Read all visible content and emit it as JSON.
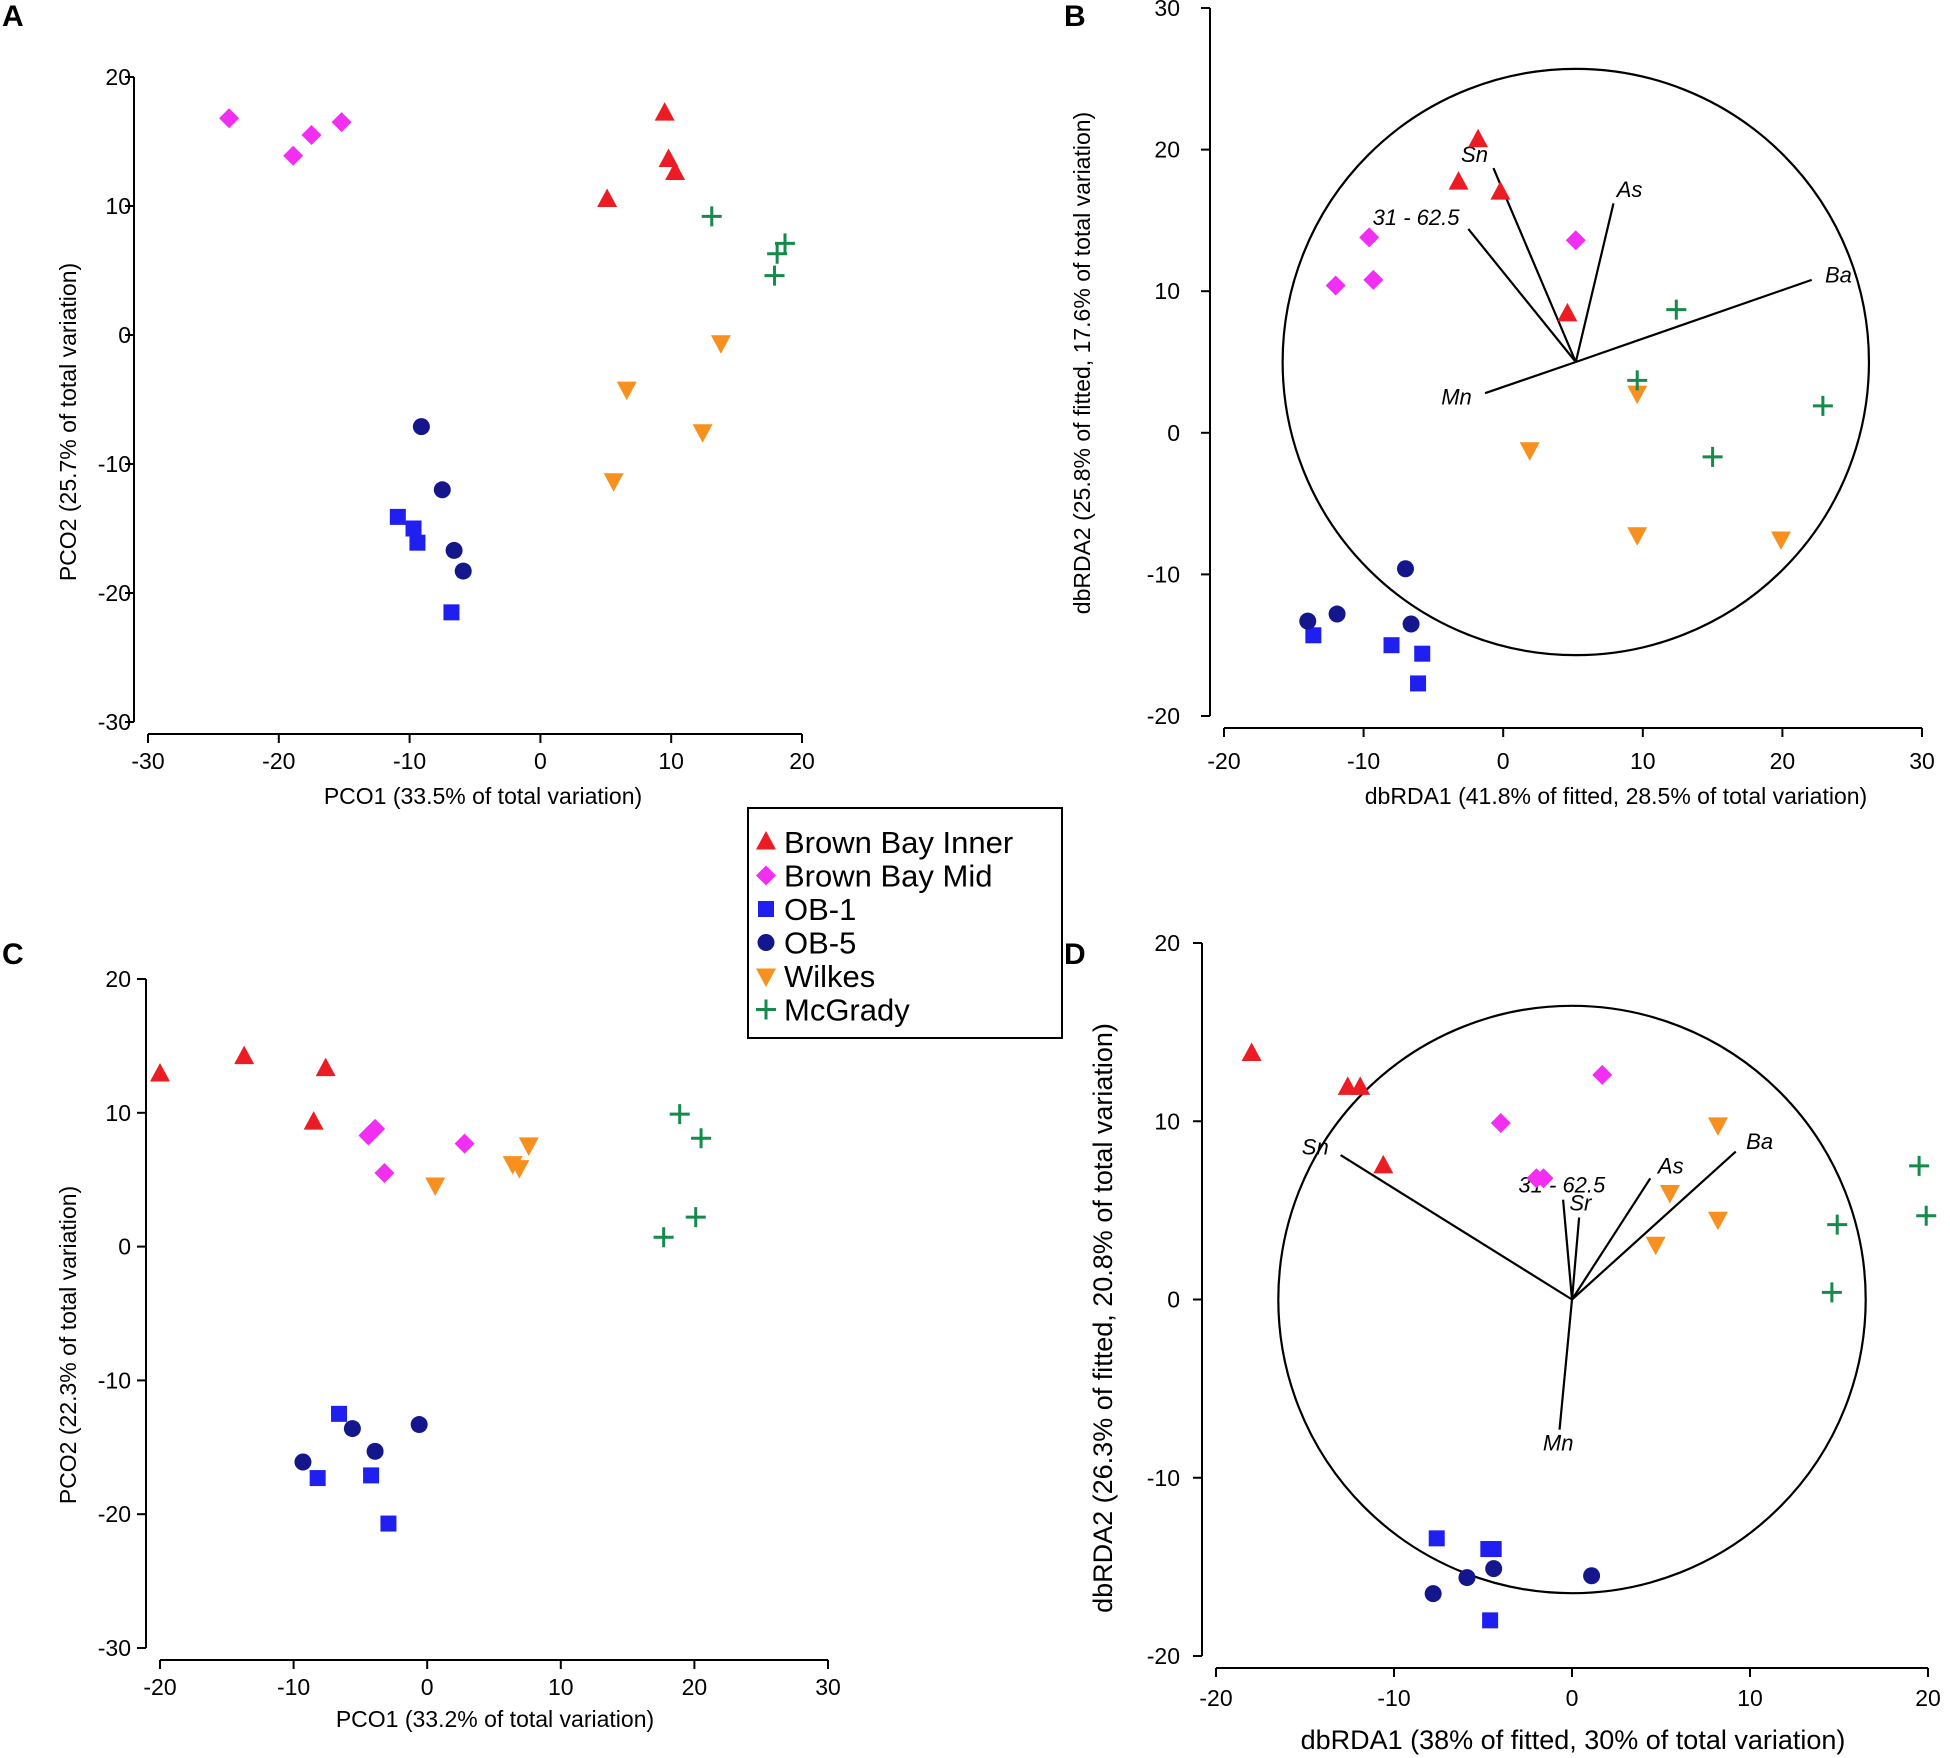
{
  "colors": {
    "Brown Bay Inner": "#ec1c24",
    "Brown Bay Mid": "#f22ef2",
    "OB-1": "#1f1ff0",
    "OB-5": "#14168c",
    "Wilkes": "#f7901e",
    "McGrady": "#158a4a"
  },
  "legend": {
    "items": [
      {
        "label": "Brown Bay Inner",
        "marker": "triangle-up"
      },
      {
        "label": "Brown Bay Mid",
        "marker": "diamond"
      },
      {
        "label": "OB-1",
        "marker": "square"
      },
      {
        "label": "OB-5",
        "marker": "circle"
      },
      {
        "label": "Wilkes",
        "marker": "triangle-down"
      },
      {
        "label": "McGrady",
        "marker": "plus"
      }
    ]
  },
  "chart_data": [
    {
      "id": "A",
      "type": "scatter",
      "panel_label": "A",
      "xlabel": "PCO1 (33.5% of total variation)",
      "ylabel": "PCO2 (25.7% of total variation)",
      "xlim": [
        -30,
        20
      ],
      "ylim": [
        -30,
        20
      ],
      "xticks": [
        -30,
        -20,
        -10,
        0,
        10,
        20
      ],
      "yticks": [
        -30,
        -20,
        -10,
        0,
        10,
        20
      ],
      "series": [
        {
          "name": "Brown Bay Inner",
          "points": [
            [
              9.5,
              17.2
            ],
            [
              9.8,
              13.6
            ],
            [
              10.3,
              12.6
            ],
            [
              5.1,
              10.5
            ]
          ]
        },
        {
          "name": "Brown Bay Mid",
          "points": [
            [
              -23.8,
              16.8
            ],
            [
              -15.2,
              16.5
            ],
            [
              -17.5,
              15.5
            ],
            [
              -18.9,
              13.9
            ]
          ]
        },
        {
          "name": "OB-1",
          "points": [
            [
              -10.9,
              -14.1
            ],
            [
              -9.7,
              -15.0
            ],
            [
              -9.4,
              -16.1
            ],
            [
              -6.8,
              -21.5
            ]
          ]
        },
        {
          "name": "OB-5",
          "points": [
            [
              -9.1,
              -7.1
            ],
            [
              -7.5,
              -12.0
            ],
            [
              -6.6,
              -16.7
            ],
            [
              -5.9,
              -18.3
            ]
          ]
        },
        {
          "name": "Wilkes",
          "points": [
            [
              13.8,
              -0.6
            ],
            [
              6.6,
              -4.2
            ],
            [
              12.4,
              -7.5
            ],
            [
              5.6,
              -11.3
            ]
          ]
        },
        {
          "name": "McGrady",
          "points": [
            [
              13.1,
              9.2
            ],
            [
              18.7,
              7.1
            ],
            [
              18.1,
              6.3
            ],
            [
              17.9,
              4.6
            ]
          ]
        }
      ]
    },
    {
      "id": "B",
      "type": "scatter",
      "panel_label": "B",
      "xlabel": "dbRDA1 (41.8% of fitted, 28.5% of total variation)",
      "ylabel": "dbRDA2 (25.8% of fitted, 17.6% of total variation)",
      "xlim": [
        -20,
        30
      ],
      "ylim": [
        -20,
        30
      ],
      "xticks": [
        -20,
        -10,
        0,
        10,
        20,
        30
      ],
      "yticks": [
        -20,
        -10,
        0,
        10,
        20,
        30
      ],
      "circle": {
        "center": [
          5.2,
          5.0
        ],
        "radius": 21.0
      },
      "vectors": [
        {
          "label": "Sn",
          "end": [
            -0.7,
            18.7
          ]
        },
        {
          "label": "As",
          "end": [
            7.9,
            16.2
          ]
        },
        {
          "label": "31 - 62.5",
          "end": [
            -2.5,
            14.4
          ]
        },
        {
          "label": "Ba",
          "end": [
            22.1,
            10.8
          ]
        },
        {
          "label": "Mn",
          "end": [
            -1.3,
            2.8
          ]
        }
      ],
      "series": [
        {
          "name": "Brown Bay Inner",
          "points": [
            [
              -1.8,
              20.7
            ],
            [
              -3.2,
              17.7
            ],
            [
              -0.2,
              17.0
            ],
            [
              4.6,
              8.4
            ]
          ]
        },
        {
          "name": "Brown Bay Mid",
          "points": [
            [
              -9.6,
              13.8
            ],
            [
              5.2,
              13.6
            ],
            [
              -9.3,
              10.8
            ],
            [
              -12.0,
              10.4
            ]
          ]
        },
        {
          "name": "OB-1",
          "points": [
            [
              -13.6,
              -14.3
            ],
            [
              -8.0,
              -15.0
            ],
            [
              -5.8,
              -15.6
            ],
            [
              -6.1,
              -17.7
            ]
          ]
        },
        {
          "name": "OB-5",
          "points": [
            [
              -14.0,
              -13.3
            ],
            [
              -11.9,
              -12.8
            ],
            [
              -7.0,
              -9.6
            ],
            [
              -6.6,
              -13.5
            ]
          ]
        },
        {
          "name": "Wilkes",
          "points": [
            [
              9.6,
              2.8
            ],
            [
              1.9,
              -1.2
            ],
            [
              9.6,
              -7.2
            ],
            [
              19.9,
              -7.5
            ]
          ]
        },
        {
          "name": "McGrady",
          "points": [
            [
              12.4,
              8.7
            ],
            [
              9.6,
              3.7
            ],
            [
              22.9,
              1.9
            ],
            [
              15.0,
              -1.7
            ]
          ]
        }
      ]
    },
    {
      "id": "C",
      "type": "scatter",
      "panel_label": "C",
      "xlabel": "PCO1 (33.2% of total variation)",
      "ylabel": "PCO2 (22.3% of total variation)",
      "xlim": [
        -20,
        30
      ],
      "ylim": [
        -30,
        20
      ],
      "xticks": [
        -20,
        -10,
        0,
        10,
        20,
        30
      ],
      "yticks": [
        -30,
        -20,
        -10,
        0,
        10,
        20
      ],
      "series": [
        {
          "name": "Brown Bay Inner",
          "points": [
            [
              -20.0,
              12.9
            ],
            [
              -13.7,
              14.2
            ],
            [
              -7.6,
              13.3
            ],
            [
              -8.5,
              9.3
            ]
          ]
        },
        {
          "name": "Brown Bay Mid",
          "points": [
            [
              -3.9,
              8.8
            ],
            [
              -4.4,
              8.3
            ],
            [
              2.8,
              7.7
            ],
            [
              -3.2,
              5.5
            ]
          ]
        },
        {
          "name": "OB-1",
          "points": [
            [
              -6.6,
              -12.5
            ],
            [
              -8.2,
              -17.3
            ],
            [
              -4.2,
              -17.1
            ],
            [
              -2.9,
              -20.7
            ]
          ]
        },
        {
          "name": "OB-5",
          "points": [
            [
              -0.6,
              -13.3
            ],
            [
              -5.6,
              -13.6
            ],
            [
              -3.9,
              -15.3
            ],
            [
              -9.3,
              -16.1
            ]
          ]
        },
        {
          "name": "Wilkes",
          "points": [
            [
              7.6,
              7.6
            ],
            [
              6.4,
              6.2
            ],
            [
              6.9,
              5.9
            ],
            [
              0.6,
              4.6
            ]
          ]
        },
        {
          "name": "McGrady",
          "points": [
            [
              18.9,
              9.9
            ],
            [
              20.5,
              8.1
            ],
            [
              20.1,
              2.2
            ],
            [
              17.7,
              0.7
            ]
          ]
        }
      ]
    },
    {
      "id": "D",
      "type": "scatter",
      "panel_label": "D",
      "xlabel": "dbRDA1 (38% of fitted, 30% of total variation)",
      "ylabel": "dbRDA2 (26.3% of fitted, 20.8% of total variation)",
      "xlim": [
        -20,
        20
      ],
      "ylim": [
        -20,
        20
      ],
      "xticks": [
        -20,
        -10,
        0,
        10,
        20
      ],
      "yticks": [
        -20,
        -10,
        0,
        10,
        20
      ],
      "circle": {
        "center": [
          0.0,
          0.0
        ],
        "radius": 16.5
      },
      "vectors": [
        {
          "label": "Sn",
          "end": [
            -13.0,
            8.1
          ]
        },
        {
          "label": "31 - 62.5",
          "end": [
            -0.5,
            5.6
          ]
        },
        {
          "label": "Sr",
          "end": [
            0.4,
            4.6
          ]
        },
        {
          "label": "As",
          "end": [
            4.4,
            6.8
          ]
        },
        {
          "label": "Ba",
          "end": [
            9.2,
            8.3
          ]
        },
        {
          "label": "Mn",
          "end": [
            -0.7,
            -7.3
          ]
        }
      ],
      "series": [
        {
          "name": "Brown Bay Inner",
          "points": [
            [
              -18.0,
              13.8
            ],
            [
              -12.6,
              11.9
            ],
            [
              -11.9,
              11.9
            ],
            [
              -10.6,
              7.5
            ]
          ]
        },
        {
          "name": "Brown Bay Mid",
          "points": [
            [
              1.7,
              12.6
            ],
            [
              -4.0,
              9.9
            ],
            [
              -2.0,
              6.8
            ],
            [
              -1.6,
              6.8
            ]
          ]
        },
        {
          "name": "OB-1",
          "points": [
            [
              -7.6,
              -13.4
            ],
            [
              -4.4,
              -14.0
            ],
            [
              -4.7,
              -14.0
            ],
            [
              -4.6,
              -18.0
            ]
          ]
        },
        {
          "name": "OB-5",
          "points": [
            [
              -4.4,
              -15.1
            ],
            [
              -5.9,
              -15.6
            ],
            [
              1.1,
              -15.5
            ],
            [
              -7.8,
              -16.5
            ]
          ]
        },
        {
          "name": "Wilkes",
          "points": [
            [
              8.2,
              9.8
            ],
            [
              5.5,
              6.0
            ],
            [
              8.2,
              4.5
            ],
            [
              4.7,
              3.1
            ]
          ]
        },
        {
          "name": "McGrady",
          "points": [
            [
              19.5,
              7.5
            ],
            [
              19.9,
              4.7
            ],
            [
              14.9,
              4.2
            ],
            [
              14.6,
              0.4
            ]
          ]
        }
      ]
    }
  ]
}
